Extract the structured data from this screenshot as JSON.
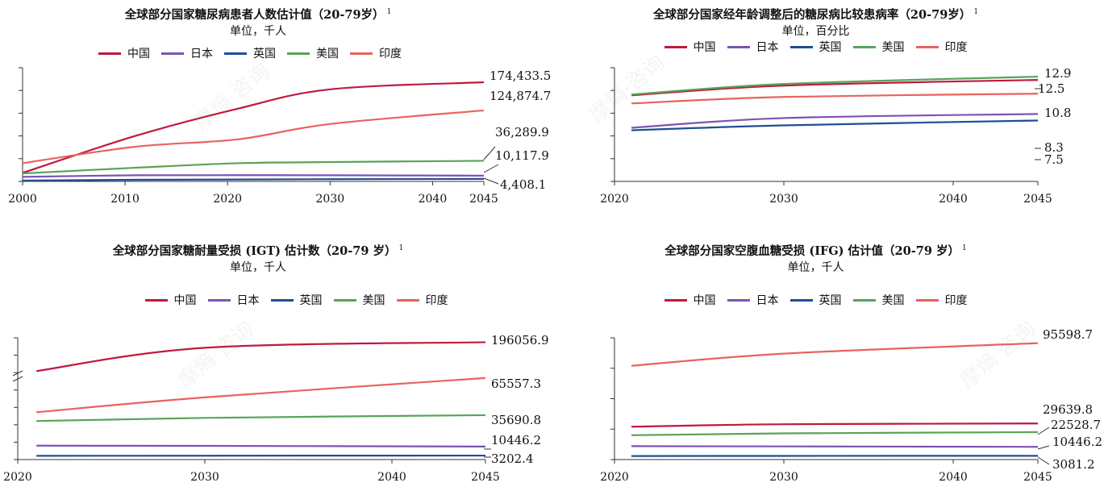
{
  "colors": {
    "中国": "#c0193f",
    "日本": "#7b54b3",
    "英国": "#1f4e96",
    "美国": "#58a45a",
    "印度": "#e8635e"
  },
  "watermark_text": "摩熵·咨询",
  "chart_data": [
    {
      "type": "line",
      "title": "全球部分国家糖尿病患者人数估计值（20-79岁）",
      "footnote": "1",
      "unit": "单位，千人",
      "xlim": [
        2000,
        2045
      ],
      "xticks": [
        "2000",
        "2010",
        "2020",
        "2030",
        "2040",
        "2045"
      ],
      "ylim": [
        0,
        200000
      ],
      "series": [
        {
          "name": "中国",
          "x": [
            2000,
            2011,
            2021,
            2030,
            2045
          ],
          "values": [
            15000,
            80000,
            128000,
            162000,
            174433.5
          ],
          "label": "174,433.5"
        },
        {
          "name": "日本",
          "x": [
            2000,
            2011,
            2021,
            2030,
            2045
          ],
          "values": [
            8000,
            10800,
            11000,
            10800,
            10117.9
          ],
          "label": "10,117.9"
        },
        {
          "name": "英国",
          "x": [
            2000,
            2011,
            2021,
            2030,
            2045
          ],
          "values": [
            1500,
            2800,
            3400,
            3900,
            4408.1
          ],
          "label": "4,408.1"
        },
        {
          "name": "美国",
          "x": [
            2000,
            2011,
            2021,
            2030,
            2045
          ],
          "values": [
            14000,
            24000,
            32000,
            34000,
            36289.9
          ],
          "label": "36,289.9"
        },
        {
          "name": "印度",
          "x": [
            2000,
            2011,
            2021,
            2030,
            2045
          ],
          "values": [
            32000,
            61000,
            74000,
            101000,
            124874.7
          ],
          "label": "124,874.7"
        }
      ]
    },
    {
      "type": "line",
      "title": "全球部分国家经年龄调整后的糖尿病比较患病率（20-79岁）",
      "footnote": "1",
      "unit": "单位，百分比",
      "xlim": [
        2020,
        2045
      ],
      "xticks": [
        "2020",
        "2030",
        "2040",
        "2045"
      ],
      "ylim": [
        0,
        14
      ],
      "series": [
        {
          "name": "中国",
          "x": [
            2021,
            2030,
            2045
          ],
          "values": [
            10.6,
            11.8,
            12.5
          ],
          "label": "12.5"
        },
        {
          "name": "日本",
          "x": [
            2021,
            2030,
            2045
          ],
          "values": [
            6.6,
            7.8,
            8.3
          ],
          "label": "8.3"
        },
        {
          "name": "英国",
          "x": [
            2021,
            2030,
            2045
          ],
          "values": [
            6.3,
            6.9,
            7.5
          ],
          "label": "7.5"
        },
        {
          "name": "美国",
          "x": [
            2021,
            2030,
            2045
          ],
          "values": [
            10.7,
            12.0,
            12.9
          ],
          "label": "12.9"
        },
        {
          "name": "印度",
          "x": [
            2021,
            2030,
            2045
          ],
          "values": [
            9.6,
            10.4,
            10.8
          ],
          "label": "10.8"
        }
      ]
    },
    {
      "type": "line",
      "title": "全球部分国家糖耐量受损 (IGT) 估计数（20-79 岁）",
      "footnote": "1",
      "unit": "单位，千人",
      "xlim": [
        2020,
        2045
      ],
      "xticks": [
        "2020",
        "2030",
        "2040",
        "2045"
      ],
      "axis_break": true,
      "series": [
        {
          "name": "中国",
          "x": [
            2021,
            2030,
            2045
          ],
          "values": [
            170000,
            191000,
            196056.9
          ],
          "label": "196056.9"
        },
        {
          "name": "日本",
          "x": [
            2021,
            2030,
            2045
          ],
          "values": [
            11200,
            11000,
            10446.2
          ],
          "label": "10446.2"
        },
        {
          "name": "英国",
          "x": [
            2021,
            2030,
            2045
          ],
          "values": [
            3000,
            3100,
            3202.4
          ],
          "label": "3202.4"
        },
        {
          "name": "美国",
          "x": [
            2021,
            2030,
            2045
          ],
          "values": [
            31000,
            33500,
            35690.8
          ],
          "label": "35690.8"
        },
        {
          "name": "印度",
          "x": [
            2021,
            2030,
            2045
          ],
          "values": [
            38000,
            50000,
            65557.3
          ],
          "label": "65557.3"
        }
      ]
    },
    {
      "type": "line",
      "title": "全球部分国家空腹血糖受损 (IFG) 估计值（20-79 岁）",
      "footnote": "1",
      "unit": "单位，千人",
      "xlim": [
        2020,
        2045
      ],
      "xticks": [
        "2020",
        "2030",
        "2040",
        "2045"
      ],
      "ylim": [
        0,
        100000
      ],
      "series": [
        {
          "name": "中国",
          "x": [
            2021,
            2030,
            2045
          ],
          "values": [
            27000,
            29000,
            29639.8
          ],
          "label": "29639.8"
        },
        {
          "name": "日本",
          "x": [
            2021,
            2030,
            2045
          ],
          "values": [
            11000,
            10800,
            10446.2
          ],
          "label": "10446.2"
        },
        {
          "name": "英国",
          "x": [
            2021,
            2030,
            2045
          ],
          "values": [
            2900,
            3000,
            3081.2
          ],
          "label": "3081.2"
        },
        {
          "name": "美国",
          "x": [
            2021,
            2030,
            2045
          ],
          "values": [
            20000,
            21500,
            22528.7
          ],
          "label": "22528.7"
        },
        {
          "name": "印度",
          "x": [
            2021,
            2030,
            2045
          ],
          "values": [
            77000,
            87000,
            95598.7
          ],
          "label": "95598.7"
        }
      ]
    }
  ]
}
